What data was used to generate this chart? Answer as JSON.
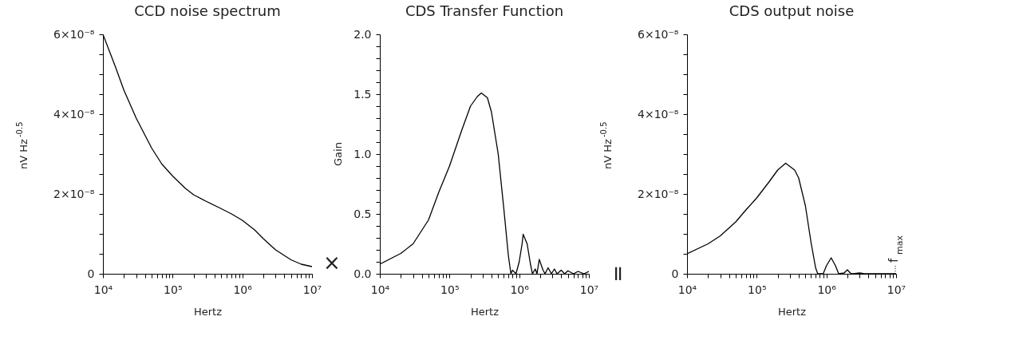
{
  "chart_data": [
    {
      "type": "line",
      "title": "CCD noise spectrum",
      "xlabel": "Hertz",
      "ylabel": "nV Hz$^{-0.5}$",
      "log": "x",
      "color": "#000000",
      "x": [
        10000.0,
        15000.0,
        20000.0,
        30000.0,
        50000.0,
        70000.0,
        100000.0,
        150000.0,
        200000.0,
        300000.0,
        500000.0,
        700000.0,
        1000000.0,
        1500000.0,
        2000000.0,
        3000000.0,
        5000000.0,
        7000000.0,
        10000000.0
      ],
      "values": [
        6e-08,
        5.2e-08,
        4.6e-08,
        3.9e-08,
        3.15e-08,
        2.75e-08,
        2.45e-08,
        2.15e-08,
        1.98e-08,
        1.82e-08,
        1.63e-08,
        1.5e-08,
        1.34e-08,
        1.1e-08,
        8.8e-09,
        6e-09,
        3.5e-09,
        2.4e-09,
        1.8e-09
      ],
      "xlim": [
        10000.0,
        10000000.0
      ],
      "ylim": [
        0,
        6e-08
      ],
      "xticks": [
        {
          "value": 10000.0,
          "label": "10⁴"
        },
        {
          "value": 20000.0,
          "label": null
        },
        {
          "value": 30000.0,
          "label": null
        },
        {
          "value": 40000.0,
          "label": null
        },
        {
          "value": 50000.0,
          "label": null
        },
        {
          "value": 60000.0,
          "label": null
        },
        {
          "value": 70000.0,
          "label": null
        },
        {
          "value": 80000.0,
          "label": null
        },
        {
          "value": 90000.0,
          "label": null
        },
        {
          "value": 100000.0,
          "label": "10⁵"
        },
        {
          "value": 200000.0,
          "label": null
        },
        {
          "value": 300000.0,
          "label": null
        },
        {
          "value": 400000.0,
          "label": null
        },
        {
          "value": 500000.0,
          "label": null
        },
        {
          "value": 600000.0,
          "label": null
        },
        {
          "value": 700000.0,
          "label": null
        },
        {
          "value": 800000.0,
          "label": null
        },
        {
          "value": 900000.0,
          "label": null
        },
        {
          "value": 1000000.0,
          "label": "10⁶"
        },
        {
          "value": 2000000.0,
          "label": null
        },
        {
          "value": 3000000.0,
          "label": null
        },
        {
          "value": 4000000.0,
          "label": null
        },
        {
          "value": 5000000.0,
          "label": null
        },
        {
          "value": 6000000.0,
          "label": null
        },
        {
          "value": 7000000.0,
          "label": null
        },
        {
          "value": 8000000.0,
          "label": null
        },
        {
          "value": 9000000.0,
          "label": null
        },
        {
          "value": 10000000.0,
          "label": "10⁷"
        }
      ],
      "yticks": [
        0,
        {
          "value": 5e-09,
          "label": null
        },
        {
          "value": 1e-08,
          "label": null
        },
        {
          "value": 1.5e-08,
          "label": null
        },
        {
          "value": 2e-08,
          "label": "2×10⁻⁸"
        },
        {
          "value": 2.5e-08,
          "label": null
        },
        {
          "value": 3e-08,
          "label": null
        },
        {
          "value": 3.5e-08,
          "label": null
        },
        {
          "value": 4e-08,
          "label": "4×10⁻⁸"
        },
        {
          "value": 4.5e-08,
          "label": null
        },
        {
          "value": 5e-08,
          "label": null
        },
        {
          "value": 5.5e-08,
          "label": null
        },
        {
          "value": 6e-08,
          "label": "6×10⁻⁸"
        }
      ]
    },
    {
      "type": "line",
      "title": "CDS Transfer Function",
      "xlabel": "Hertz",
      "ylabel": "Gain",
      "log": "x",
      "color": "#000000",
      "x": [
        10000.0,
        20000.0,
        30000.0,
        50000.0,
        70000.0,
        100000.0,
        150000.0,
        200000.0,
        250000.0,
        286000.0,
        350000.0,
        400000.0,
        500000.0,
        600000.0,
        700000.0,
        760000.0,
        800000.0,
        900000.0,
        1000000.0,
        1100000.0,
        1140000.0,
        1300000.0,
        1450000.0,
        1550000.0,
        1700000.0,
        1800000.0,
        1940000.0,
        2200000.0,
        2350000.0,
        2600000.0,
        2900000.0,
        3200000.0,
        3500000.0,
        4000000.0,
        4500000.0,
        5000000.0,
        6000000.0,
        7000000.0,
        8500000.0,
        10000000.0
      ],
      "values": [
        0.08,
        0.17,
        0.25,
        0.45,
        0.68,
        0.9,
        1.2,
        1.4,
        1.48,
        1.51,
        1.47,
        1.35,
        1.0,
        0.55,
        0.15,
        0.0,
        0.03,
        0.0,
        0.1,
        0.25,
        0.33,
        0.25,
        0.08,
        0.0,
        0.04,
        0.0,
        0.12,
        0.03,
        0.0,
        0.05,
        0.0,
        0.04,
        0.0,
        0.03,
        0.0,
        0.025,
        0.0,
        0.02,
        0.0,
        0.02
      ],
      "xlim": [
        10000.0,
        10000000.0
      ],
      "ylim": [
        0,
        2.0
      ],
      "xticks": [
        {
          "value": 10000.0,
          "label": "10⁴"
        },
        {
          "value": 20000.0,
          "label": null
        },
        {
          "value": 30000.0,
          "label": null
        },
        {
          "value": 40000.0,
          "label": null
        },
        {
          "value": 50000.0,
          "label": null
        },
        {
          "value": 60000.0,
          "label": null
        },
        {
          "value": 70000.0,
          "label": null
        },
        {
          "value": 80000.0,
          "label": null
        },
        {
          "value": 90000.0,
          "label": null
        },
        {
          "value": 100000.0,
          "label": "10⁵"
        },
        {
          "value": 200000.0,
          "label": null
        },
        {
          "value": 300000.0,
          "label": null
        },
        {
          "value": 400000.0,
          "label": null
        },
        {
          "value": 500000.0,
          "label": null
        },
        {
          "value": 600000.0,
          "label": null
        },
        {
          "value": 700000.0,
          "label": null
        },
        {
          "value": 800000.0,
          "label": null
        },
        {
          "value": 900000.0,
          "label": null
        },
        {
          "value": 1000000.0,
          "label": "10⁶"
        },
        {
          "value": 2000000.0,
          "label": null
        },
        {
          "value": 3000000.0,
          "label": null
        },
        {
          "value": 4000000.0,
          "label": null
        },
        {
          "value": 5000000.0,
          "label": null
        },
        {
          "value": 6000000.0,
          "label": null
        },
        {
          "value": 7000000.0,
          "label": null
        },
        {
          "value": 8000000.0,
          "label": null
        },
        {
          "value": 9000000.0,
          "label": null
        },
        {
          "value": 10000000.0,
          "label": "10⁷"
        }
      ],
      "yticks": [
        {
          "value": 0,
          "label": "0.0"
        },
        {
          "value": 0.1,
          "label": null
        },
        {
          "value": 0.2,
          "label": null
        },
        {
          "value": 0.3,
          "label": null
        },
        {
          "value": 0.4,
          "label": null
        },
        {
          "value": 0.5,
          "label": "0.5"
        },
        {
          "value": 0.6,
          "label": null
        },
        {
          "value": 0.7,
          "label": null
        },
        {
          "value": 0.8,
          "label": null
        },
        {
          "value": 0.9,
          "label": null
        },
        {
          "value": 1.0,
          "label": "1.0"
        },
        {
          "value": 1.1,
          "label": null
        },
        {
          "value": 1.2,
          "label": null
        },
        {
          "value": 1.3,
          "label": null
        },
        {
          "value": 1.4,
          "label": null
        },
        {
          "value": 1.5,
          "label": "1.5"
        },
        {
          "value": 1.6,
          "label": null
        },
        {
          "value": 1.7,
          "label": null
        },
        {
          "value": 1.8,
          "label": null
        },
        {
          "value": 1.9,
          "label": null
        },
        {
          "value": 2.0,
          "label": "2.0"
        }
      ],
      "annotations": [
        "×"
      ]
    },
    {
      "type": "line",
      "title": "CDS output noise",
      "xlabel": "Hertz",
      "ylabel": "nV Hz$^{-0.5}$",
      "log": "x",
      "color": "#000000",
      "x": [
        10000.0,
        20000.0,
        30000.0,
        50000.0,
        70000.0,
        100000.0,
        150000.0,
        200000.0,
        260000.0,
        350000.0,
        400000.0,
        500000.0,
        600000.0,
        700000.0,
        750000.0,
        900000.0,
        1000000.0,
        1170000.0,
        1350000.0,
        1500000.0,
        1800000.0,
        2000000.0,
        2200000.0,
        2400000.0,
        3000000.0,
        3500000.0,
        10000000.0
      ],
      "values": [
        5e-09,
        7.5e-09,
        9.5e-09,
        1.3e-08,
        1.6e-08,
        1.9e-08,
        2.3e-08,
        2.6e-08,
        2.77e-08,
        2.6e-08,
        2.4e-08,
        1.7e-08,
        8e-09,
        1.5e-09,
        0.0,
        0.0,
        2e-09,
        4e-09,
        2e-09,
        0.0,
        2e-10,
        1e-09,
        2e-10,
        0.0,
        2e-10,
        0.0,
        0.0
      ],
      "xlim": [
        10000.0,
        10000000.0
      ],
      "ylim": [
        0,
        6e-08
      ],
      "xticks": [
        {
          "value": 10000.0,
          "label": "10⁴"
        },
        {
          "value": 20000.0,
          "label": null
        },
        {
          "value": 30000.0,
          "label": null
        },
        {
          "value": 40000.0,
          "label": null
        },
        {
          "value": 50000.0,
          "label": null
        },
        {
          "value": 60000.0,
          "label": null
        },
        {
          "value": 70000.0,
          "label": null
        },
        {
          "value": 80000.0,
          "label": null
        },
        {
          "value": 90000.0,
          "label": null
        },
        {
          "value": 100000.0,
          "label": "10⁵"
        },
        {
          "value": 200000.0,
          "label": null
        },
        {
          "value": 300000.0,
          "label": null
        },
        {
          "value": 400000.0,
          "label": null
        },
        {
          "value": 500000.0,
          "label": null
        },
        {
          "value": 600000.0,
          "label": null
        },
        {
          "value": 700000.0,
          "label": null
        },
        {
          "value": 800000.0,
          "label": null
        },
        {
          "value": 900000.0,
          "label": null
        },
        {
          "value": 1000000.0,
          "label": "10⁶"
        },
        {
          "value": 2000000.0,
          "label": null
        },
        {
          "value": 3000000.0,
          "label": null
        },
        {
          "value": 4000000.0,
          "label": null
        },
        {
          "value": 5000000.0,
          "label": null
        },
        {
          "value": 6000000.0,
          "label": null
        },
        {
          "value": 7000000.0,
          "label": null
        },
        {
          "value": 8000000.0,
          "label": null
        },
        {
          "value": 9000000.0,
          "label": null
        },
        {
          "value": 10000000.0,
          "label": "10⁷"
        }
      ],
      "yticks": [
        0,
        {
          "value": 5e-09,
          "label": null
        },
        {
          "value": 1e-08,
          "label": null
        },
        {
          "value": 1.5e-08,
          "label": null
        },
        {
          "value": 2e-08,
          "label": "2×10⁻⁸"
        },
        {
          "value": 2.5e-08,
          "label": null
        },
        {
          "value": 3e-08,
          "label": null
        },
        {
          "value": 3.5e-08,
          "label": null
        },
        {
          "value": 4e-08,
          "label": "4×10⁻⁸"
        },
        {
          "value": 4.5e-08,
          "label": null
        },
        {
          "value": 5e-08,
          "label": null
        },
        {
          "value": 5.5e-08,
          "label": null
        },
        {
          "value": 6e-08,
          "label": "6×10⁻⁸"
        }
      ],
      "annotations": [
        "=",
        "f$_{max}$"
      ]
    }
  ]
}
